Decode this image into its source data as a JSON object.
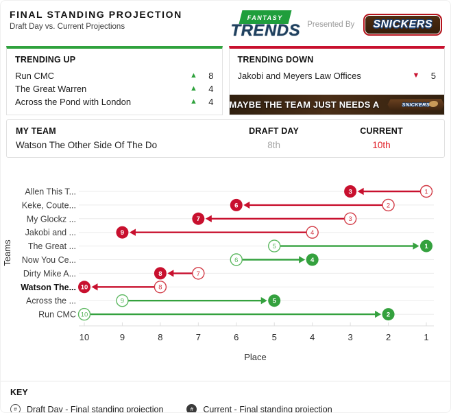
{
  "header": {
    "title": "FINAL STANDING PROJECTION",
    "subtitle": "Draft Day vs. Current Projections",
    "logo": {
      "fantasy": "FANTASY",
      "trends": "TRENDS"
    },
    "presented_by": "Presented By",
    "sponsor": "SNICKERS"
  },
  "trending_up": {
    "title": "TRENDING UP",
    "accent": "#2fa23d",
    "items": [
      {
        "name": "Run CMC",
        "change": "8"
      },
      {
        "name": "The Great Warren",
        "change": "4"
      },
      {
        "name": "Across the Pond with London",
        "change": "4"
      }
    ]
  },
  "trending_down": {
    "title": "TRENDING DOWN",
    "accent": "#c8102e",
    "items": [
      {
        "name": "Jakobi and Meyers Law Offices",
        "change": "5"
      }
    ],
    "ad": {
      "text": "MAYBE THE TEAM JUST NEEDS A",
      "sponsor": "SNICKERS"
    }
  },
  "my_team": {
    "col_team": "MY TEAM",
    "col_draft": "DRAFT DAY",
    "col_current": "CURRENT",
    "team_name": "Watson The Other Side Of The Do",
    "draft_day": "8th",
    "current": "10th"
  },
  "chart_data": {
    "type": "scatter",
    "variant": "dumbbell-arrow",
    "xlabel": "Place",
    "ylabel": "Teams",
    "x_ticks": [
      10,
      9,
      8,
      7,
      6,
      5,
      4,
      3,
      2,
      1
    ],
    "x_reversed": true,
    "grid": true,
    "colors": {
      "up": "#34a13e",
      "up_light": "#5cb860",
      "down": "#c8102e",
      "down_light": "#d23a45"
    },
    "teams": [
      {
        "label": "Allen This T...",
        "draft": 1,
        "current": 3,
        "direction": "down",
        "bold": false
      },
      {
        "label": "Keke, Coute...",
        "draft": 2,
        "current": 6,
        "direction": "down",
        "bold": false
      },
      {
        "label": "My Glockz ...",
        "draft": 3,
        "current": 7,
        "direction": "down",
        "bold": false
      },
      {
        "label": "Jakobi and ...",
        "draft": 4,
        "current": 9,
        "direction": "down",
        "bold": false
      },
      {
        "label": "The Great ...",
        "draft": 5,
        "current": 1,
        "direction": "up",
        "bold": false
      },
      {
        "label": "Now You Ce...",
        "draft": 6,
        "current": 4,
        "direction": "up",
        "bold": false
      },
      {
        "label": "Dirty Mike A...",
        "draft": 7,
        "current": 8,
        "direction": "down",
        "bold": false
      },
      {
        "label": "Watson The...",
        "draft": 8,
        "current": 10,
        "direction": "down",
        "bold": true
      },
      {
        "label": "Across the ...",
        "draft": 9,
        "current": 5,
        "direction": "up",
        "bold": false
      },
      {
        "label": "Run CMC",
        "draft": 10,
        "current": 2,
        "direction": "up",
        "bold": false
      }
    ]
  },
  "key": {
    "title": "KEY",
    "items": [
      {
        "marker": "outline",
        "symbol": "#",
        "label": "Draft Day - Final standing projection"
      },
      {
        "marker": "filled",
        "symbol": "#",
        "label": "Current - Final standing projection"
      }
    ]
  }
}
